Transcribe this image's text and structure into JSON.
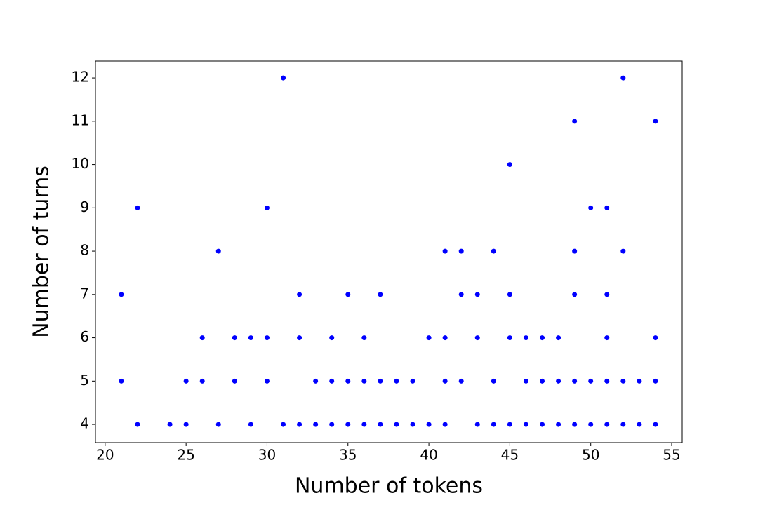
{
  "chart_data": {
    "type": "scatter",
    "xlabel": "Number of tokens",
    "ylabel": "Number of turns",
    "color": "#0000ff",
    "x": [
      21,
      21,
      22,
      22,
      24,
      25,
      25,
      26,
      26,
      27,
      27,
      28,
      28,
      29,
      29,
      30,
      30,
      30,
      31,
      31,
      32,
      32,
      32,
      33,
      33,
      34,
      34,
      34,
      35,
      35,
      35,
      36,
      36,
      36,
      37,
      37,
      37,
      38,
      38,
      39,
      39,
      40,
      40,
      41,
      41,
      41,
      41,
      42,
      42,
      42,
      43,
      43,
      43,
      44,
      44,
      44,
      45,
      45,
      45,
      45,
      46,
      46,
      46,
      47,
      47,
      47,
      48,
      48,
      48,
      49,
      49,
      49,
      49,
      49,
      50,
      50,
      50,
      51,
      51,
      51,
      51,
      51,
      52,
      52,
      52,
      52,
      53,
      53,
      54,
      54,
      54,
      54
    ],
    "y": [
      7,
      5,
      9,
      4,
      4,
      5,
      4,
      6,
      5,
      8,
      4,
      6,
      5,
      6,
      4,
      9,
      6,
      5,
      12,
      4,
      7,
      6,
      4,
      5,
      4,
      6,
      5,
      4,
      7,
      5,
      4,
      6,
      5,
      4,
      7,
      5,
      4,
      5,
      4,
      5,
      4,
      6,
      4,
      8,
      6,
      5,
      4,
      8,
      7,
      5,
      7,
      6,
      4,
      8,
      5,
      4,
      10,
      7,
      6,
      4,
      6,
      5,
      4,
      6,
      5,
      4,
      6,
      5,
      4,
      11,
      8,
      7,
      5,
      4,
      9,
      5,
      4,
      9,
      7,
      6,
      5,
      4,
      12,
      8,
      5,
      4,
      5,
      4,
      11,
      6,
      5,
      4
    ],
    "xlim": [
      19.4,
      55.65
    ],
    "ylim": [
      3.58,
      12.39
    ],
    "xticks": [
      20,
      25,
      30,
      35,
      40,
      45,
      50,
      55
    ],
    "yticks": [
      4,
      5,
      6,
      7,
      8,
      9,
      10,
      11,
      12
    ]
  }
}
